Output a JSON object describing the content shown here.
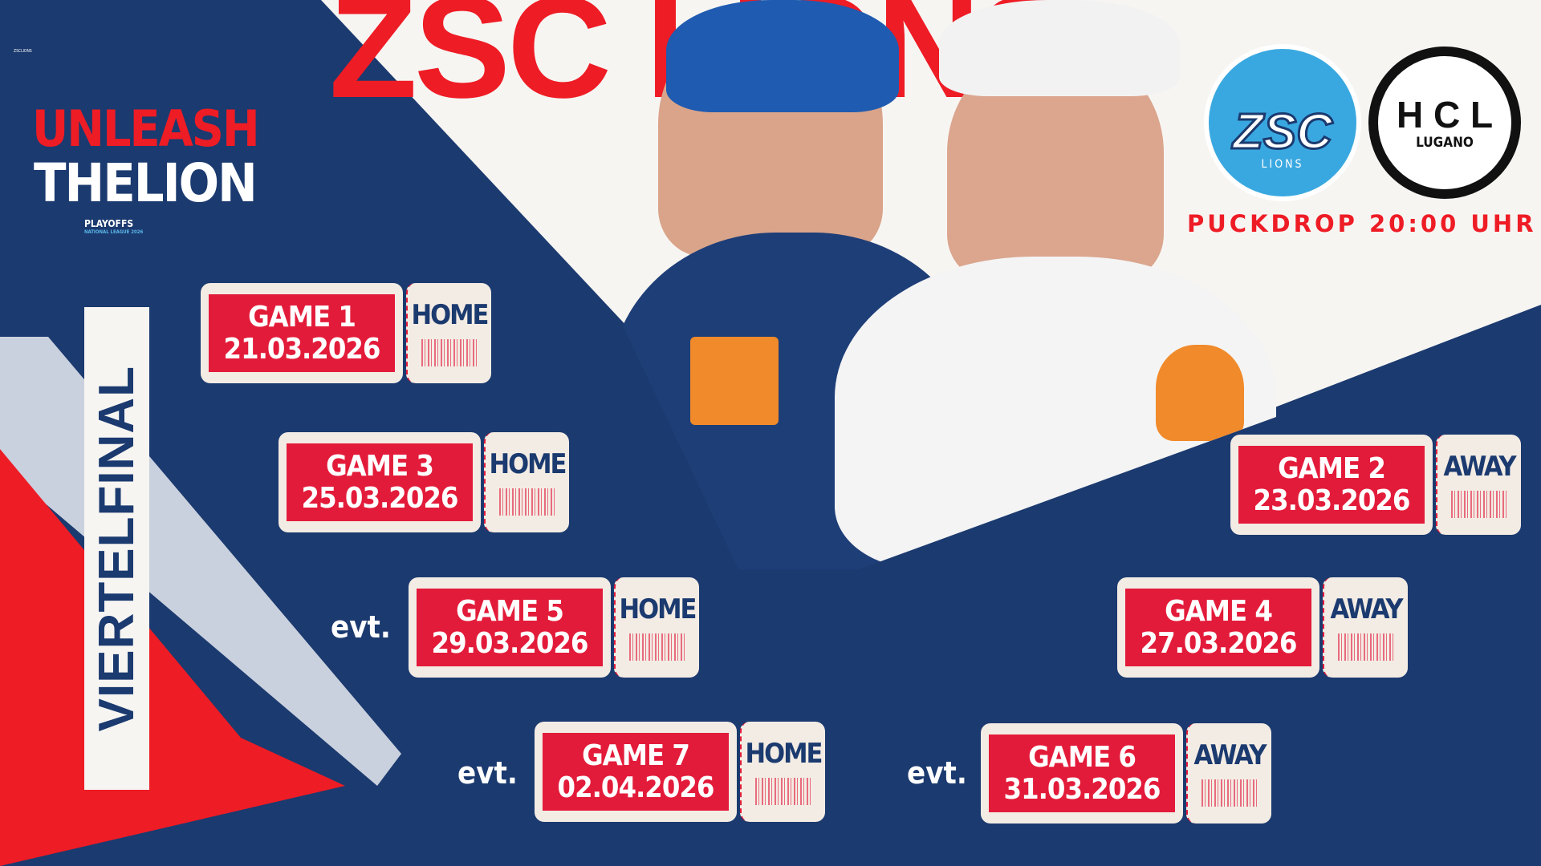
{
  "branding": {
    "tiny_text": "ZSCLIONS",
    "slogan_line1": "UNLEASH",
    "slogan_line2": "THELION",
    "playoffs": "PLAYOFFS",
    "league": "NATIONAL LEAGUE 2026",
    "big_text": "ZSC LIONS"
  },
  "round": "VIERTELFINAL",
  "teams": {
    "home": {
      "name": "ZSC",
      "sub": "LIONS",
      "colors": [
        "#3aa8e0",
        "#ee1c25",
        "#1b3a6f"
      ]
    },
    "away": {
      "letters": "H C L",
      "name": "LUGANO"
    }
  },
  "puckdrop": "PUCKDROP 20:00 UHR",
  "games": [
    {
      "label": "GAME 1",
      "date": "21.03.2026",
      "venue": "HOME",
      "prefix": ""
    },
    {
      "label": "GAME 2",
      "date": "23.03.2026",
      "venue": "AWAY",
      "prefix": ""
    },
    {
      "label": "GAME 3",
      "date": "25.03.2026",
      "venue": "HOME",
      "prefix": ""
    },
    {
      "label": "GAME 4",
      "date": "27.03.2026",
      "venue": "AWAY",
      "prefix": ""
    },
    {
      "label": "GAME 5",
      "date": "29.03.2026",
      "venue": "HOME",
      "prefix": "evt."
    },
    {
      "label": "GAME 6",
      "date": "31.03.2026",
      "venue": "AWAY",
      "prefix": "evt."
    },
    {
      "label": "GAME 7",
      "date": "02.04.2026",
      "venue": "HOME",
      "prefix": "evt."
    }
  ],
  "colors": {
    "navy": "#1b3a6f",
    "red": "#e31b3a",
    "cream": "#f3ece4"
  }
}
